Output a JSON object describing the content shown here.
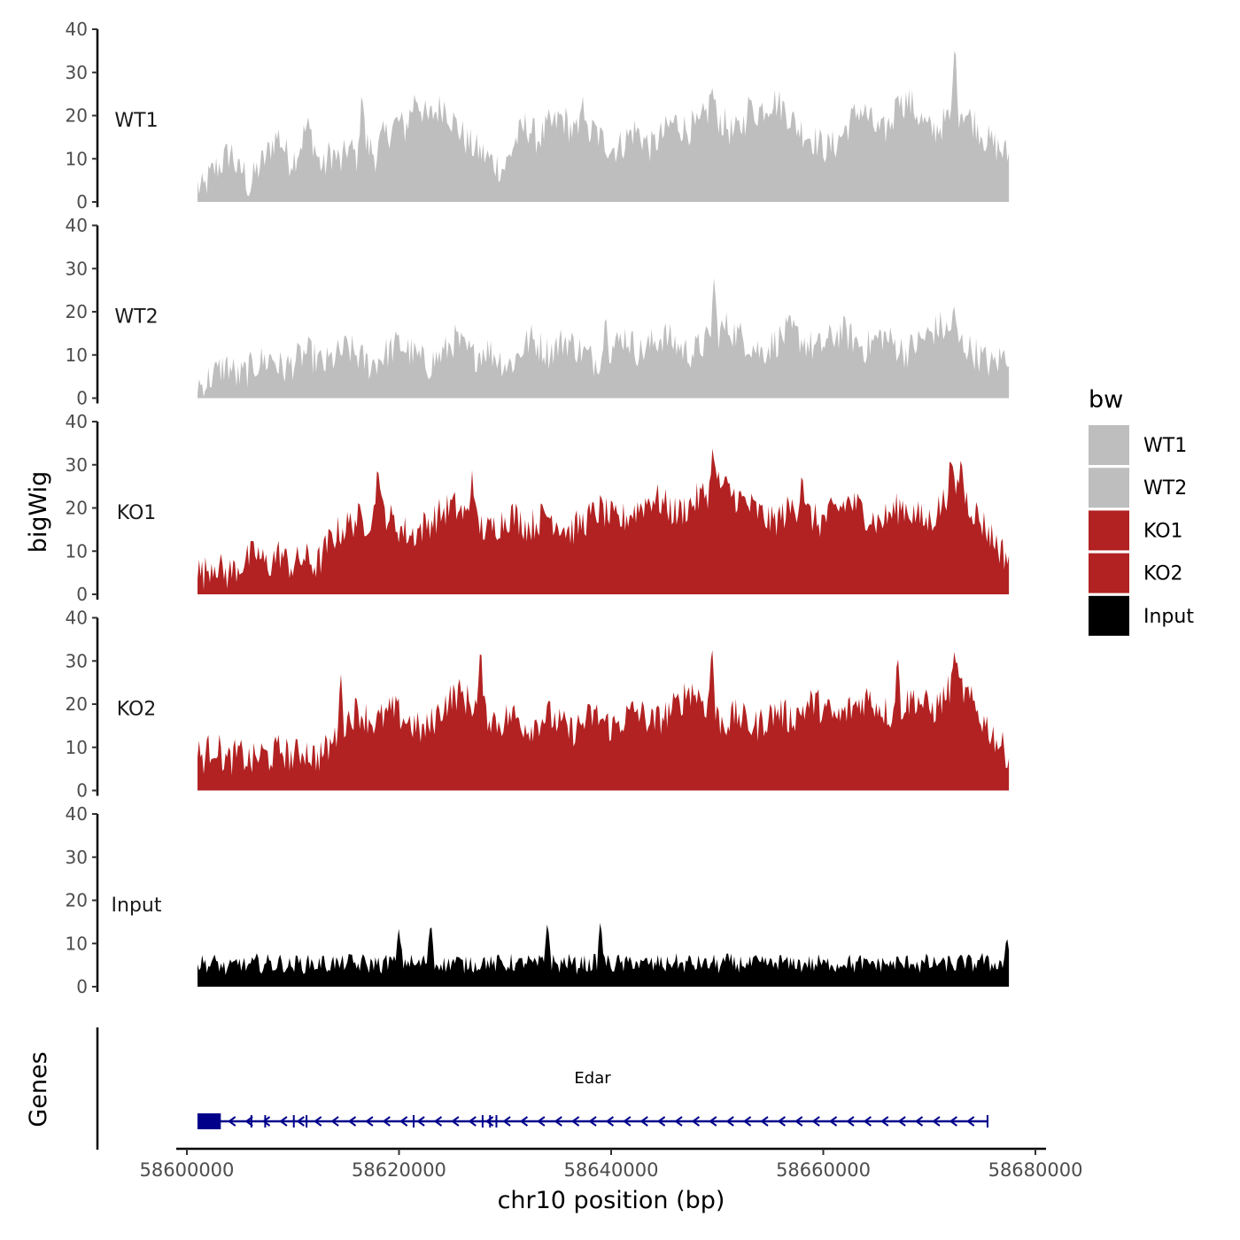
{
  "chart_data": {
    "type": "area",
    "ylabel": "bigWig",
    "xlabel": "chr10 position (bp)",
    "ylim": [
      0,
      40
    ],
    "yticks": [
      0,
      10,
      20,
      30,
      40
    ],
    "xlim": [
      58599000,
      58681000
    ],
    "xticks": [
      58600000,
      58620000,
      58640000,
      58660000,
      58680000
    ],
    "xtick_labels": [
      "58600000",
      "58620000",
      "58640000",
      "58660000",
      "58680000"
    ],
    "data_range": [
      58601000,
      58677500
    ],
    "legend": {
      "title": "bw",
      "placement": "right",
      "entries": [
        {
          "label": "WT1",
          "color": "#bebebe"
        },
        {
          "label": "WT2",
          "color": "#bebebe"
        },
        {
          "label": "KO1",
          "color": "#b22222"
        },
        {
          "label": "KO2",
          "color": "#b22222"
        },
        {
          "label": "Input",
          "color": "#000000"
        }
      ]
    },
    "tracks": [
      {
        "name": "WT1",
        "color": "#bebebe",
        "profile": [
          4,
          3,
          6,
          8,
          9,
          11,
          12,
          7,
          8,
          3,
          7,
          9,
          11,
          14,
          16,
          13,
          10,
          11,
          14,
          18,
          15,
          10,
          8,
          12,
          11,
          9,
          13,
          12,
          10,
          14,
          13,
          11,
          15,
          16,
          18,
          19,
          17,
          21,
          25,
          22,
          19,
          21,
          22,
          23,
          20,
          18,
          16,
          14,
          13,
          12,
          11,
          10,
          9,
          8,
          10,
          14,
          16,
          18,
          17,
          15,
          16,
          18,
          18,
          20,
          19,
          17,
          16,
          15,
          16,
          17,
          15,
          14,
          13,
          13,
          14,
          16,
          17,
          16,
          14,
          13,
          15,
          16,
          18,
          19,
          18,
          17,
          18,
          17,
          20,
          22,
          21,
          19,
          18,
          16,
          17,
          19,
          20,
          21,
          22,
          23,
          24,
          23,
          22,
          20,
          18,
          17,
          16,
          15,
          14,
          13,
          13,
          14,
          16,
          18,
          20,
          22,
          21,
          19,
          17,
          16,
          18,
          20,
          22,
          24,
          23,
          21,
          19,
          17,
          17,
          18,
          19,
          20,
          21,
          22,
          20,
          19,
          17,
          15,
          14,
          13,
          12,
          11
        ],
        "peaks": [
          {
            "x": 58616500,
            "y": 27
          },
          {
            "x": 58637300,
            "y": 26
          },
          {
            "x": 58649500,
            "y": 27
          },
          {
            "x": 58653000,
            "y": 25
          },
          {
            "x": 58672400,
            "y": 38
          },
          {
            "x": 58667000,
            "y": 26
          }
        ]
      },
      {
        "name": "WT2",
        "color": "#bebebe",
        "profile": [
          4,
          3,
          5,
          6,
          7,
          8,
          7,
          5,
          6,
          7,
          8,
          9,
          9,
          10,
          8,
          7,
          8,
          9,
          10,
          11,
          10,
          9,
          8,
          9,
          10,
          11,
          12,
          11,
          10,
          9,
          8,
          9,
          10,
          11,
          12,
          13,
          12,
          11,
          10,
          9,
          8,
          9,
          10,
          11,
          13,
          14,
          12,
          11,
          10,
          11,
          12,
          11,
          10,
          9,
          8,
          9,
          11,
          13,
          14,
          13,
          12,
          11,
          12,
          13,
          14,
          13,
          12,
          11,
          10,
          9,
          10,
          11,
          12,
          13,
          15,
          14,
          12,
          11,
          12,
          13,
          14,
          15,
          14,
          13,
          12,
          11,
          11,
          12,
          13,
          14,
          15,
          16,
          17,
          16,
          15,
          14,
          13,
          12,
          11,
          12,
          13,
          14,
          15,
          16,
          15,
          14,
          13,
          12,
          12,
          13,
          14,
          15,
          16,
          15,
          14,
          13,
          12,
          13,
          14,
          15,
          14,
          13,
          12,
          11,
          12,
          13,
          14,
          15,
          16,
          17,
          16,
          15,
          14,
          13,
          12,
          11,
          10,
          9,
          8,
          9,
          10,
          11
        ],
        "peaks": [
          {
            "x": 58649700,
            "y": 28
          },
          {
            "x": 58639500,
            "y": 20
          },
          {
            "x": 58672300,
            "y": 22
          }
        ]
      },
      {
        "name": "KO1",
        "color": "#b22222",
        "profile": [
          6,
          5,
          7,
          8,
          6,
          5,
          6,
          7,
          8,
          9,
          10,
          8,
          7,
          9,
          10,
          8,
          7,
          8,
          9,
          8,
          7,
          9,
          12,
          14,
          15,
          16,
          17,
          18,
          17,
          18,
          19,
          20,
          19,
          17,
          16,
          15,
          14,
          15,
          16,
          17,
          18,
          19,
          20,
          21,
          20,
          19,
          18,
          17,
          16,
          15,
          16,
          17,
          18,
          19,
          18,
          17,
          16,
          17,
          18,
          19,
          18,
          17,
          16,
          15,
          16,
          17,
          18,
          19,
          20,
          19,
          18,
          17,
          18,
          19,
          20,
          21,
          22,
          23,
          22,
          21,
          20,
          19,
          20,
          21,
          22,
          23,
          24,
          25,
          26,
          25,
          24,
          23,
          22,
          21,
          20,
          19,
          18,
          17,
          18,
          19,
          20,
          21,
          20,
          19,
          18,
          17,
          18,
          19,
          20,
          21,
          22,
          21,
          20,
          19,
          18,
          17,
          18,
          19,
          20,
          21,
          20,
          19,
          18,
          17,
          18,
          20,
          22,
          24,
          25,
          24,
          22,
          20,
          18,
          16,
          14,
          12,
          10,
          9
        ],
        "peaks": [
          {
            "x": 58618000,
            "y": 31
          },
          {
            "x": 58626900,
            "y": 29
          },
          {
            "x": 58649600,
            "y": 35
          },
          {
            "x": 58658000,
            "y": 29
          },
          {
            "x": 58672000,
            "y": 32
          },
          {
            "x": 58673000,
            "y": 32
          }
        ]
      },
      {
        "name": "KO2",
        "color": "#b22222",
        "profile": [
          9,
          8,
          10,
          11,
          9,
          7,
          8,
          9,
          8,
          7,
          8,
          9,
          8,
          9,
          10,
          9,
          8,
          9,
          10,
          9,
          8,
          9,
          10,
          12,
          14,
          16,
          18,
          19,
          18,
          17,
          16,
          17,
          18,
          19,
          18,
          17,
          16,
          15,
          14,
          15,
          17,
          19,
          21,
          22,
          23,
          22,
          21,
          20,
          19,
          18,
          17,
          16,
          17,
          18,
          17,
          16,
          15,
          16,
          17,
          18,
          17,
          16,
          15,
          14,
          15,
          16,
          17,
          18,
          17,
          16,
          15,
          16,
          17,
          18,
          19,
          18,
          17,
          16,
          17,
          18,
          19,
          20,
          22,
          24,
          23,
          22,
          20,
          18,
          17,
          16,
          17,
          18,
          17,
          16,
          15,
          16,
          17,
          18,
          19,
          18,
          17,
          18,
          19,
          20,
          21,
          20,
          19,
          18,
          17,
          18,
          19,
          20,
          21,
          22,
          21,
          20,
          19,
          18,
          19,
          20,
          21,
          22,
          21,
          20,
          19,
          20,
          22,
          24,
          25,
          24,
          22,
          20,
          18,
          16,
          14,
          12,
          10,
          9
        ],
        "peaks": [
          {
            "x": 58627700,
            "y": 34
          },
          {
            "x": 58649500,
            "y": 35
          },
          {
            "x": 58667000,
            "y": 32
          },
          {
            "x": 58672400,
            "y": 33
          },
          {
            "x": 58614500,
            "y": 28
          }
        ]
      },
      {
        "name": "Input",
        "color": "#000000",
        "profile": [
          5,
          6,
          5,
          6,
          5,
          4,
          5,
          6,
          5,
          5,
          6,
          5,
          6,
          5,
          6,
          5,
          5,
          6,
          5,
          6,
          5,
          6,
          5,
          6,
          5,
          6,
          6,
          5,
          6,
          5,
          6,
          5,
          6,
          6,
          5,
          6,
          6,
          5,
          6,
          6,
          5,
          6,
          5,
          6,
          6,
          5,
          6,
          5,
          6,
          6,
          5,
          6,
          5,
          6,
          5,
          6,
          6,
          5,
          6,
          5,
          6,
          5,
          6,
          6,
          5,
          6,
          5,
          6,
          5,
          6,
          5,
          6,
          5,
          6,
          6,
          5,
          6,
          5,
          6,
          5,
          6,
          6,
          5,
          6,
          5,
          6,
          5,
          6,
          5,
          6,
          6,
          5,
          6,
          5,
          6,
          5,
          6,
          5,
          6,
          6,
          5,
          6,
          5,
          6,
          5,
          6,
          5,
          6,
          5,
          6,
          6,
          5,
          6,
          5,
          6,
          5,
          6,
          5,
          6,
          5,
          6,
          6,
          5,
          6,
          5,
          6,
          5,
          6,
          5,
          6,
          6,
          5,
          7,
          6,
          5,
          6,
          5,
          6
        ],
        "peaks": [
          {
            "x": 58623000,
            "y": 16
          },
          {
            "x": 58634000,
            "y": 16
          },
          {
            "x": 58639000,
            "y": 16
          },
          {
            "x": 58620000,
            "y": 14
          },
          {
            "x": 58677300,
            "y": 12
          }
        ]
      }
    ],
    "genes": {
      "label": "Genes",
      "color": "#00008b",
      "names": [
        "Edar"
      ],
      "gene": {
        "name": "Edar",
        "start": 58601000,
        "end": 58675500,
        "strand": "-",
        "exons": [
          [
            58601000,
            58603200
          ],
          [
            58606000,
            58606100
          ],
          [
            58607300,
            58607400
          ],
          [
            58610000,
            58610100
          ],
          [
            58611200,
            58611300
          ],
          [
            58621300,
            58621400
          ],
          [
            58627800,
            58627900
          ],
          [
            58628500,
            58628600
          ],
          [
            58629100,
            58629200
          ],
          [
            58675400,
            58675500
          ]
        ]
      }
    }
  }
}
